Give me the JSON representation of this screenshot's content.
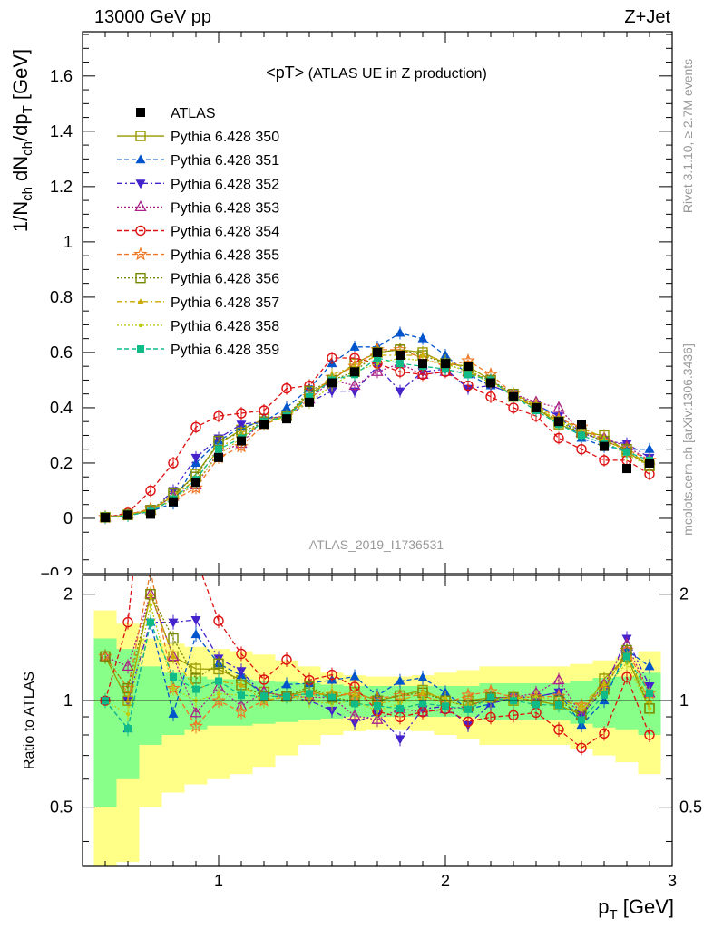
{
  "header": {
    "left": "13000 GeV pp",
    "right": "Z+Jet"
  },
  "side_labels": {
    "rivet": "Rivet 3.1.10, ≥ 2.7M events",
    "mcplots": "mcplots.cern.ch [arXiv:1306.3436]"
  },
  "chart_data": {
    "type": "line",
    "title": "<pT> (ATLAS UE in Z production)",
    "title_main": "<pT>",
    "title_sub": "(ATLAS UE in Z production)",
    "analysis_id": "ATLAS_2019_I1736531",
    "xlabel_main": "p",
    "xlabel_sub": "T",
    "xlabel_unit": "[GeV]",
    "ylabel_top_parts": [
      "1/N",
      "ch",
      " dN",
      "ch",
      "/dp",
      "T",
      " [GeV]"
    ],
    "ylabel_ratio": "Ratio to ATLAS",
    "xlim": [
      0.4,
      3.0
    ],
    "ylim_main": [
      -0.2,
      1.76
    ],
    "ylim_ratio": [
      0.34,
      2.26
    ],
    "x_ticks": [
      "1",
      "2",
      "3"
    ],
    "y_ticks_main": [
      "0",
      "0.2",
      "0.4",
      "0.6",
      "0.8",
      "1",
      "1.2",
      "1.4",
      "1.6"
    ],
    "y_ticks_ratio": [
      "0.5",
      "1",
      "2"
    ],
    "legend_position": "top-left",
    "x": [
      0.5,
      0.6,
      0.7,
      0.8,
      0.9,
      1.0,
      1.1,
      1.2,
      1.3,
      1.4,
      1.5,
      1.6,
      1.7,
      1.8,
      1.9,
      2.0,
      2.1,
      2.2,
      2.3,
      2.4,
      2.5,
      2.6,
      2.7,
      2.8,
      2.9
    ],
    "reference": {
      "name": "ATLAS",
      "color": "#000000",
      "values": [
        0.003,
        0.012,
        0.015,
        0.06,
        0.13,
        0.22,
        0.28,
        0.34,
        0.36,
        0.42,
        0.49,
        0.53,
        0.6,
        0.59,
        0.56,
        0.56,
        0.55,
        0.49,
        0.44,
        0.4,
        0.35,
        0.34,
        0.26,
        0.18,
        0.2
      ],
      "band_green": [
        0.5,
        0.4,
        0.25,
        0.2,
        0.17,
        0.15,
        0.15,
        0.14,
        0.13,
        0.12,
        0.11,
        0.1,
        0.1,
        0.1,
        0.1,
        0.1,
        0.1,
        0.12,
        0.12,
        0.12,
        0.12,
        0.14,
        0.16,
        0.17,
        0.2
      ],
      "band_yellow": [
        0.8,
        0.65,
        0.5,
        0.45,
        0.42,
        0.4,
        0.38,
        0.35,
        0.3,
        0.25,
        0.2,
        0.18,
        0.17,
        0.17,
        0.18,
        0.2,
        0.22,
        0.25,
        0.25,
        0.25,
        0.25,
        0.27,
        0.3,
        0.33,
        0.38
      ]
    },
    "series": [
      {
        "name": "Pythia 6.428 350",
        "color": "#999900",
        "marker": "open-square",
        "dash": "",
        "values": [
          0.004,
          0.012,
          0.03,
          0.08,
          0.16,
          0.27,
          0.32,
          0.36,
          0.37,
          0.45,
          0.5,
          0.56,
          0.6,
          0.61,
          0.6,
          0.56,
          0.55,
          0.5,
          0.44,
          0.4,
          0.34,
          0.31,
          0.3,
          0.24,
          0.19
        ]
      },
      {
        "name": "Pythia 6.428 351",
        "color": "#0055cc",
        "marker": "filled-triangle",
        "dash": "5,3",
        "values": [
          0.003,
          0.01,
          0.025,
          0.055,
          0.2,
          0.28,
          0.33,
          0.35,
          0.4,
          0.47,
          0.56,
          0.62,
          0.62,
          0.67,
          0.65,
          0.59,
          0.52,
          0.48,
          0.45,
          0.41,
          0.37,
          0.29,
          0.26,
          0.25,
          0.25
        ]
      },
      {
        "name": "Pythia 6.428 352",
        "color": "#4422cc",
        "marker": "filled-triangle-down",
        "dash": "6,3,2,3",
        "values": [
          0.003,
          0.012,
          0.025,
          0.1,
          0.22,
          0.29,
          0.34,
          0.35,
          0.37,
          0.42,
          0.46,
          0.46,
          0.55,
          0.46,
          0.53,
          0.54,
          0.47,
          0.48,
          0.45,
          0.41,
          0.37,
          0.31,
          0.28,
          0.27,
          0.22
        ]
      },
      {
        "name": "Pythia 6.428 353",
        "color": "#aa2288",
        "marker": "open-triangle",
        "dash": "2,2",
        "values": [
          0.004,
          0.015,
          0.03,
          0.08,
          0.12,
          0.24,
          0.27,
          0.36,
          0.37,
          0.43,
          0.5,
          0.48,
          0.53,
          0.56,
          0.52,
          0.53,
          0.53,
          0.5,
          0.45,
          0.42,
          0.4,
          0.31,
          0.29,
          0.26,
          0.21
        ]
      },
      {
        "name": "Pythia 6.428 354",
        "color": "#dd1111",
        "marker": "open-circle",
        "dash": "5,3",
        "values": [
          0.003,
          0.02,
          0.1,
          0.2,
          0.33,
          0.37,
          0.38,
          0.39,
          0.47,
          0.48,
          0.58,
          0.58,
          0.56,
          0.53,
          0.52,
          0.53,
          0.48,
          0.44,
          0.4,
          0.37,
          0.29,
          0.25,
          0.21,
          0.21,
          0.16
        ]
      },
      {
        "name": "Pythia 6.428 355",
        "color": "#ee7722",
        "marker": "open-star",
        "dash": "5,3",
        "values": [
          0.004,
          0.013,
          0.035,
          0.065,
          0.11,
          0.22,
          0.26,
          0.34,
          0.37,
          0.44,
          0.51,
          0.55,
          0.61,
          0.61,
          0.58,
          0.55,
          0.57,
          0.52,
          0.45,
          0.41,
          0.36,
          0.33,
          0.28,
          0.25,
          0.21
        ]
      },
      {
        "name": "Pythia 6.428 356",
        "color": "#778800",
        "marker": "open-square",
        "dash": "2,2",
        "values": [
          0.004,
          0.013,
          0.03,
          0.09,
          0.15,
          0.28,
          0.31,
          0.35,
          0.37,
          0.46,
          0.5,
          0.53,
          0.6,
          0.61,
          0.59,
          0.56,
          0.53,
          0.5,
          0.45,
          0.4,
          0.35,
          0.31,
          0.28,
          0.25,
          0.19
        ]
      },
      {
        "name": "Pythia 6.428 357",
        "color": "#ccaa00",
        "marker": "small-filled-triangle",
        "dash": "6,3,2,3",
        "values": [
          0.003,
          0.012,
          0.03,
          0.08,
          0.14,
          0.25,
          0.31,
          0.34,
          0.37,
          0.43,
          0.52,
          0.55,
          0.59,
          0.59,
          0.59,
          0.57,
          0.54,
          0.49,
          0.45,
          0.4,
          0.35,
          0.33,
          0.29,
          0.24,
          0.2
        ]
      },
      {
        "name": "Pythia 6.428 358",
        "color": "#bbcc11",
        "marker": "small-filled-dot",
        "dash": "2,2",
        "values": [
          0.003,
          0.011,
          0.028,
          0.065,
          0.13,
          0.23,
          0.29,
          0.35,
          0.37,
          0.42,
          0.48,
          0.53,
          0.56,
          0.58,
          0.57,
          0.56,
          0.53,
          0.49,
          0.45,
          0.41,
          0.35,
          0.32,
          0.28,
          0.23,
          0.19
        ]
      },
      {
        "name": "Pythia 6.428 359",
        "color": "#11bb88",
        "marker": "filled-square",
        "dash": "5,3",
        "values": [
          0.003,
          0.01,
          0.025,
          0.07,
          0.14,
          0.25,
          0.29,
          0.35,
          0.37,
          0.44,
          0.5,
          0.52,
          0.58,
          0.56,
          0.55,
          0.54,
          0.52,
          0.5,
          0.44,
          0.39,
          0.34,
          0.3,
          0.27,
          0.24,
          0.21
        ]
      }
    ]
  }
}
